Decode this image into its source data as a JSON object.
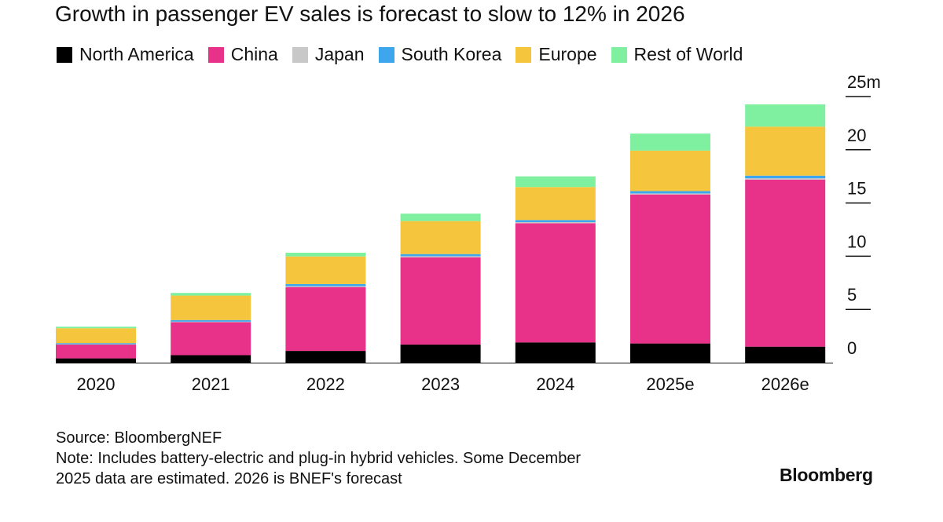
{
  "chart_data": {
    "type": "bar",
    "stacked": true,
    "title": "Growth in passenger EV sales is forecast to slow to 12% in 2026",
    "categories": [
      "2020",
      "2021",
      "2022",
      "2023",
      "2024",
      "2025e",
      "2026e"
    ],
    "series": [
      {
        "name": "North America",
        "color": "#000000",
        "values": [
          0.4,
          0.7,
          1.1,
          1.7,
          1.9,
          1.8,
          1.5
        ]
      },
      {
        "name": "China",
        "color": "#e8328a",
        "values": [
          1.3,
          3.1,
          6.0,
          8.2,
          11.2,
          14.0,
          15.7
        ]
      },
      {
        "name": "Japan",
        "color": "#c8c8c8",
        "values": [
          0.03,
          0.05,
          0.08,
          0.1,
          0.1,
          0.1,
          0.12
        ]
      },
      {
        "name": "South Korea",
        "color": "#3ea6ec",
        "values": [
          0.1,
          0.15,
          0.2,
          0.2,
          0.2,
          0.22,
          0.25
        ]
      },
      {
        "name": "Europe",
        "color": "#f4c53d",
        "values": [
          1.4,
          2.3,
          2.6,
          3.1,
          3.1,
          3.8,
          4.6
        ]
      },
      {
        "name": "Rest of World",
        "color": "#7ff0a0",
        "values": [
          0.15,
          0.25,
          0.35,
          0.7,
          1.0,
          1.6,
          2.1
        ]
      }
    ],
    "y_axis": {
      "ylim": [
        0,
        25
      ],
      "ticks": [
        0,
        5,
        10,
        15,
        20,
        25
      ],
      "tick_labels": [
        "0",
        "5",
        "10",
        "15",
        "20",
        "25m"
      ],
      "position": "right"
    },
    "legend_position": "top-left"
  },
  "source": "Source: BloombergNEF",
  "note_line1": "Note: Includes battery-electric and plug-in hybrid vehicles. Some December",
  "note_line2": "2025 data are estimated. 2026 is BNEF's forecast",
  "brand": "Bloomberg"
}
